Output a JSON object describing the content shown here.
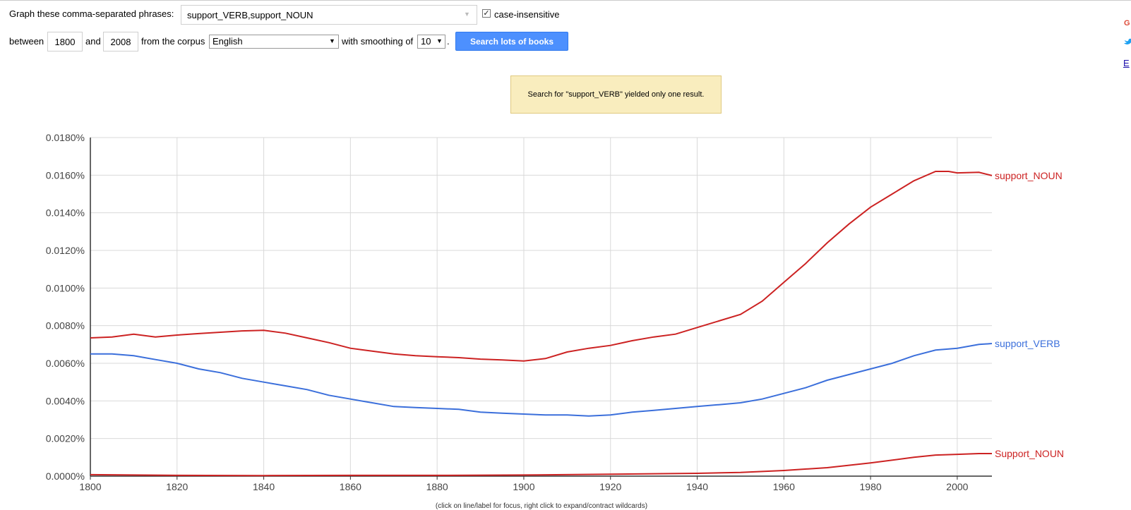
{
  "form": {
    "phrases_label": "Graph these comma-separated phrases:",
    "phrases_value": "support_VERB,support_NOUN",
    "case_insensitive_label": "case-insensitive",
    "case_insensitive_checked": true,
    "between_label": "between",
    "year_start": "1800",
    "and_label": "and",
    "year_end": "2008",
    "corpus_label": "from the corpus",
    "corpus_value": "English",
    "smoothing_label": "with smoothing of",
    "smoothing_value": "10",
    "search_button_label": "Search lots of books"
  },
  "notice": "Search for \"support_VERB\" yielded only one result.",
  "side": {
    "g_label": "G",
    "link_label": "E"
  },
  "icons": {
    "checkbox": "check-icon",
    "dropdown": "caret-down-icon",
    "share": "twitter-bird-icon"
  },
  "chart_hint": "(click on line/label for focus, right click to expand/contract wildcards)",
  "chart_data": {
    "type": "line",
    "xlim": [
      1800,
      2008
    ],
    "ylim": [
      0,
      0.018
    ],
    "x_ticks": [
      1800,
      1820,
      1840,
      1860,
      1880,
      1900,
      1920,
      1940,
      1960,
      1980,
      2000
    ],
    "x_tick_labels": [
      "1800",
      "1820",
      "1840",
      "1860",
      "1880",
      "1900",
      "1920",
      "1940",
      "1960",
      "1980",
      "2000"
    ],
    "y_ticks": [
      0,
      0.002,
      0.004,
      0.006,
      0.008,
      0.01,
      0.012,
      0.014,
      0.016,
      0.018
    ],
    "y_tick_labels": [
      "0.0000%",
      "0.0020%",
      "0.0040%",
      "0.0060%",
      "0.0080%",
      "0.0100%",
      "0.0120%",
      "0.0140%",
      "0.0160%",
      "0.0180%"
    ],
    "grid": true,
    "series": [
      {
        "name": "support_NOUN",
        "color": "#cc2222",
        "x": [
          1800,
          1805,
          1810,
          1815,
          1820,
          1825,
          1830,
          1835,
          1840,
          1845,
          1850,
          1855,
          1860,
          1865,
          1870,
          1875,
          1880,
          1885,
          1890,
          1895,
          1900,
          1905,
          1910,
          1915,
          1920,
          1925,
          1930,
          1935,
          1940,
          1945,
          1950,
          1955,
          1960,
          1965,
          1970,
          1975,
          1980,
          1985,
          1990,
          1995,
          1998,
          2000,
          2005,
          2008
        ],
        "y": [
          0.00735,
          0.0074,
          0.00755,
          0.0074,
          0.0075,
          0.00758,
          0.00765,
          0.00772,
          0.00775,
          0.0076,
          0.00735,
          0.0071,
          0.0068,
          0.00665,
          0.0065,
          0.0064,
          0.00635,
          0.0063,
          0.00622,
          0.00618,
          0.00612,
          0.00625,
          0.0066,
          0.0068,
          0.00695,
          0.0072,
          0.0074,
          0.00755,
          0.0079,
          0.00825,
          0.0086,
          0.0093,
          0.0103,
          0.0113,
          0.0124,
          0.0134,
          0.0143,
          0.015,
          0.0157,
          0.0162,
          0.0162,
          0.01612,
          0.01615,
          0.01598
        ]
      },
      {
        "name": "support_VERB",
        "color": "#3b6fdb",
        "x": [
          1800,
          1805,
          1810,
          1815,
          1820,
          1825,
          1830,
          1835,
          1840,
          1845,
          1850,
          1855,
          1860,
          1865,
          1870,
          1875,
          1880,
          1885,
          1890,
          1895,
          1900,
          1905,
          1910,
          1915,
          1920,
          1925,
          1930,
          1935,
          1940,
          1945,
          1950,
          1955,
          1960,
          1965,
          1970,
          1975,
          1980,
          1985,
          1990,
          1995,
          2000,
          2005,
          2008
        ],
        "y": [
          0.0065,
          0.0065,
          0.0064,
          0.0062,
          0.006,
          0.0057,
          0.0055,
          0.0052,
          0.005,
          0.0048,
          0.0046,
          0.0043,
          0.0041,
          0.0039,
          0.0037,
          0.00365,
          0.0036,
          0.00355,
          0.0034,
          0.00335,
          0.0033,
          0.00325,
          0.00325,
          0.0032,
          0.00325,
          0.0034,
          0.0035,
          0.0036,
          0.0037,
          0.0038,
          0.0039,
          0.0041,
          0.0044,
          0.0047,
          0.0051,
          0.0054,
          0.0057,
          0.006,
          0.0064,
          0.0067,
          0.0068,
          0.007,
          0.00705
        ]
      },
      {
        "name": "Support_NOUN",
        "color": "#cc2222",
        "x": [
          1800,
          1820,
          1840,
          1860,
          1880,
          1900,
          1920,
          1940,
          1950,
          1960,
          1970,
          1980,
          1990,
          1995,
          2000,
          2005,
          2008
        ],
        "y": [
          8e-05,
          4e-05,
          3e-05,
          4e-05,
          4e-05,
          6e-05,
          0.0001,
          0.00015,
          0.0002,
          0.0003,
          0.00045,
          0.0007,
          0.001,
          0.00112,
          0.00116,
          0.0012,
          0.0012
        ]
      }
    ]
  }
}
